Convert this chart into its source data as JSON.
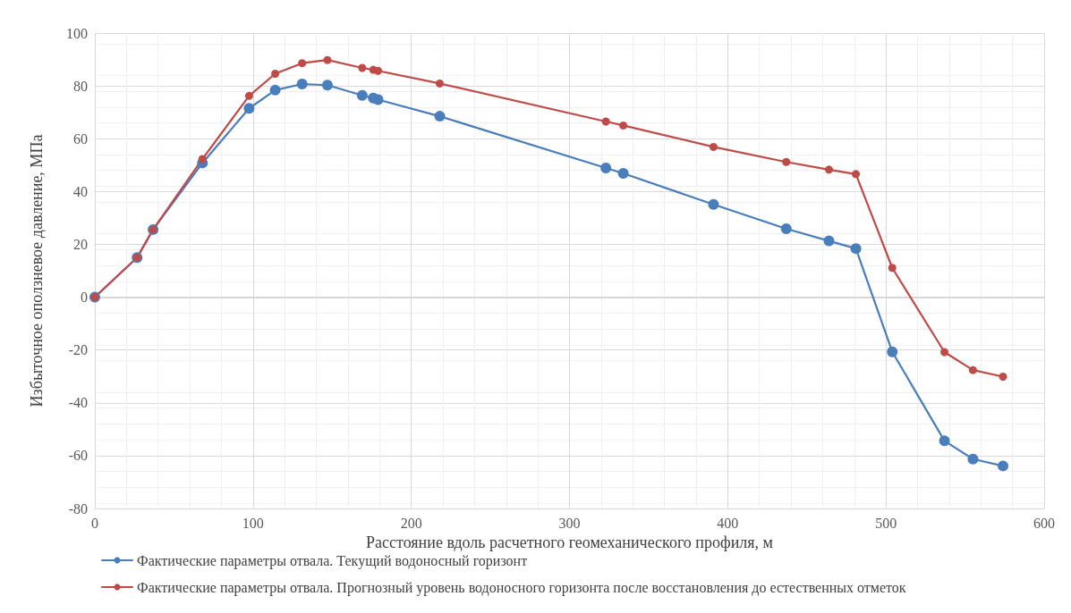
{
  "chart_data": {
    "type": "line",
    "xlabel": "Расстояние вдоль расчетного геомеханического профиля, м",
    "ylabel": "Избыточное оползневое давление, МПа",
    "xlim": [
      0,
      600
    ],
    "xticks": [
      0,
      100,
      200,
      300,
      400,
      500,
      600
    ],
    "ylim": [
      -80,
      100
    ],
    "yticks": [
      -80,
      -60,
      -40,
      -20,
      0,
      20,
      40,
      60,
      80,
      100
    ],
    "grid": true,
    "legend": "bottom left",
    "marker": "circle",
    "line_style": "solid",
    "x": [
      0,
      26.7,
      36.8,
      68,
      97.5,
      114,
      131,
      147,
      169,
      176,
      179,
      218,
      323,
      334,
      391,
      437,
      464,
      481,
      504,
      537,
      555,
      574
    ],
    "series": [
      {
        "name": "Фактические параметры отвала. Текущий водоносный горизонт",
        "color": "#4a7ebb",
        "values": [
          0,
          15,
          25.6,
          50.8,
          71.5,
          78.4,
          80.7,
          80.3,
          76.4,
          75.4,
          74.8,
          68.5,
          48.9,
          46.9,
          35.1,
          25.9,
          21.3,
          18.4,
          -20.7,
          -54.4,
          -61.3,
          -63.9
        ]
      },
      {
        "name": "Фактические параметры отвала. Прогнозный уровень водоносного горизонта после восстановления до естественных отметок",
        "color": "#be4b48",
        "values": [
          0,
          15,
          25.6,
          52.3,
          76.2,
          84.6,
          88.6,
          89.8,
          86.8,
          86.1,
          85.7,
          80.9,
          66.5,
          65,
          56.9,
          51.2,
          48.3,
          46.6,
          11.1,
          -20.8,
          -27.6,
          -30.1
        ]
      }
    ]
  }
}
